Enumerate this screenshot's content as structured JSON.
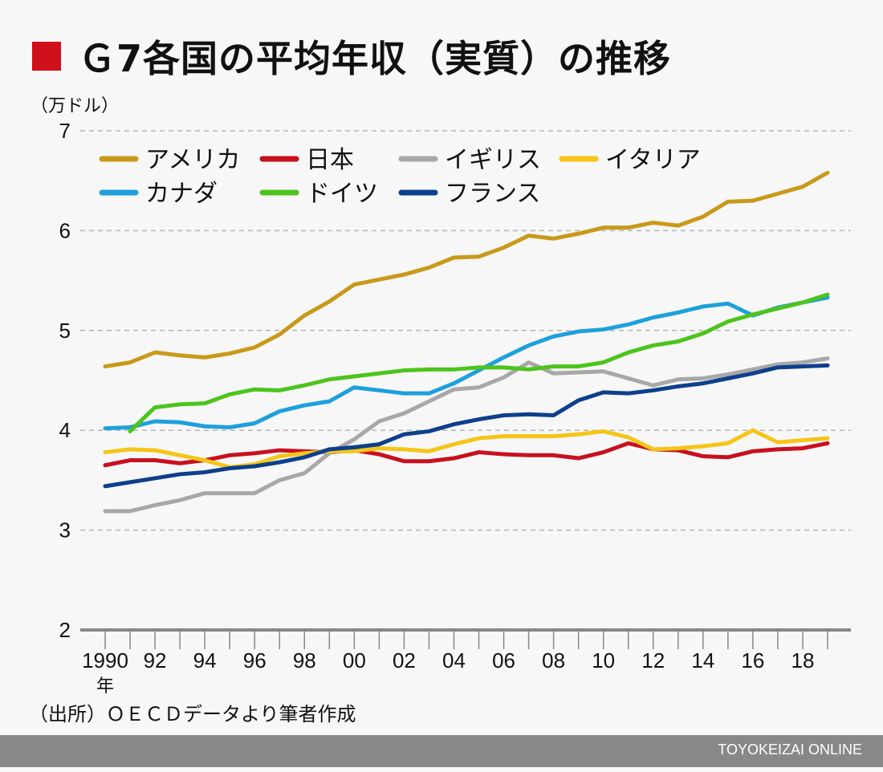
{
  "title": "Ｇ7各国の平均年収（実質）の推移",
  "footer": {
    "source": "（出所）ＯＥＣＤデータより筆者作成",
    "brand": "TOYOKEIZAI ONLINE"
  },
  "chart_data": {
    "type": "line",
    "title": "Ｇ7各国の平均年収（実質）の推移",
    "ylabel": "（万ドル）",
    "xlabel": "",
    "x_unit_label": "年",
    "ylim": [
      2,
      7
    ],
    "yticks": [
      2,
      3,
      4,
      5,
      6,
      7
    ],
    "xlim": [
      1990,
      2019
    ],
    "xtick_labels": [
      {
        "x": 1990,
        "label": "1990"
      },
      {
        "x": 1992,
        "label": "92"
      },
      {
        "x": 1994,
        "label": "94"
      },
      {
        "x": 1996,
        "label": "96"
      },
      {
        "x": 1998,
        "label": "98"
      },
      {
        "x": 2000,
        "label": "00"
      },
      {
        "x": 2002,
        "label": "02"
      },
      {
        "x": 2004,
        "label": "04"
      },
      {
        "x": 2006,
        "label": "06"
      },
      {
        "x": 2008,
        "label": "08"
      },
      {
        "x": 2010,
        "label": "10"
      },
      {
        "x": 2012,
        "label": "12"
      },
      {
        "x": 2014,
        "label": "14"
      },
      {
        "x": 2016,
        "label": "16"
      },
      {
        "x": 2018,
        "label": "18"
      }
    ],
    "grid": "horizontal dashed",
    "legend": "top-left",
    "series": [
      {
        "name": "アメリカ",
        "color": "#c9991a",
        "start": 1990,
        "values": [
          4.64,
          4.68,
          4.78,
          4.75,
          4.73,
          4.77,
          4.83,
          4.96,
          5.15,
          5.29,
          5.46,
          5.51,
          5.56,
          5.63,
          5.73,
          5.74,
          5.83,
          5.95,
          5.92,
          5.97,
          6.03,
          6.03,
          6.08,
          6.05,
          6.14,
          6.29,
          6.3,
          6.37,
          6.44,
          6.58
        ]
      },
      {
        "name": "日本",
        "color": "#c8101e",
        "start": 1990,
        "values": [
          3.65,
          3.7,
          3.7,
          3.67,
          3.7,
          3.75,
          3.77,
          3.8,
          3.79,
          3.78,
          3.8,
          3.76,
          3.69,
          3.69,
          3.72,
          3.78,
          3.76,
          3.75,
          3.75,
          3.72,
          3.78,
          3.87,
          3.81,
          3.8,
          3.74,
          3.73,
          3.79,
          3.81,
          3.82,
          3.87
        ]
      },
      {
        "name": "イギリス",
        "color": "#a8a8a8",
        "start": 1990,
        "values": [
          3.19,
          3.19,
          3.25,
          3.3,
          3.37,
          3.37,
          3.37,
          3.5,
          3.57,
          3.77,
          3.91,
          4.09,
          4.17,
          4.29,
          4.41,
          4.43,
          4.53,
          4.68,
          4.57,
          4.58,
          4.59,
          4.52,
          4.45,
          4.51,
          4.52,
          4.56,
          4.61,
          4.66,
          4.68,
          4.72
        ]
      },
      {
        "name": "イタリア",
        "color": "#f5c518",
        "start": 1990,
        "values": [
          3.78,
          3.81,
          3.8,
          3.75,
          3.7,
          3.63,
          3.66,
          3.74,
          3.77,
          3.79,
          3.79,
          3.82,
          3.81,
          3.79,
          3.86,
          3.92,
          3.94,
          3.94,
          3.94,
          3.96,
          3.99,
          3.93,
          3.81,
          3.82,
          3.84,
          3.87,
          4.0,
          3.88,
          3.9,
          3.92
        ]
      },
      {
        "name": "カナダ",
        "color": "#1ea0dc",
        "start": 1990,
        "values": [
          4.02,
          4.03,
          4.09,
          4.08,
          4.04,
          4.03,
          4.07,
          4.19,
          4.25,
          4.29,
          4.43,
          4.4,
          4.37,
          4.37,
          4.47,
          4.6,
          4.73,
          4.85,
          4.94,
          4.99,
          5.01,
          5.06,
          5.13,
          5.18,
          5.24,
          5.27,
          5.15,
          5.23,
          5.28,
          5.33
        ]
      },
      {
        "name": "ドイツ",
        "color": "#4cc41c",
        "start": 1991,
        "values": [
          3.99,
          4.23,
          4.26,
          4.27,
          4.36,
          4.41,
          4.4,
          4.45,
          4.51,
          4.54,
          4.57,
          4.6,
          4.61,
          4.61,
          4.63,
          4.63,
          4.61,
          4.64,
          4.64,
          4.68,
          4.78,
          4.85,
          4.89,
          4.97,
          5.09,
          5.16,
          5.22,
          5.28,
          5.36
        ]
      },
      {
        "name": "フランス",
        "color": "#0d3f8c",
        "start": 1990,
        "values": [
          3.44,
          3.48,
          3.52,
          3.56,
          3.58,
          3.62,
          3.64,
          3.68,
          3.73,
          3.81,
          3.83,
          3.86,
          3.96,
          3.99,
          4.06,
          4.11,
          4.15,
          4.16,
          4.15,
          4.3,
          4.38,
          4.37,
          4.4,
          4.44,
          4.47,
          4.52,
          4.57,
          4.63,
          4.64,
          4.65
        ]
      }
    ]
  }
}
